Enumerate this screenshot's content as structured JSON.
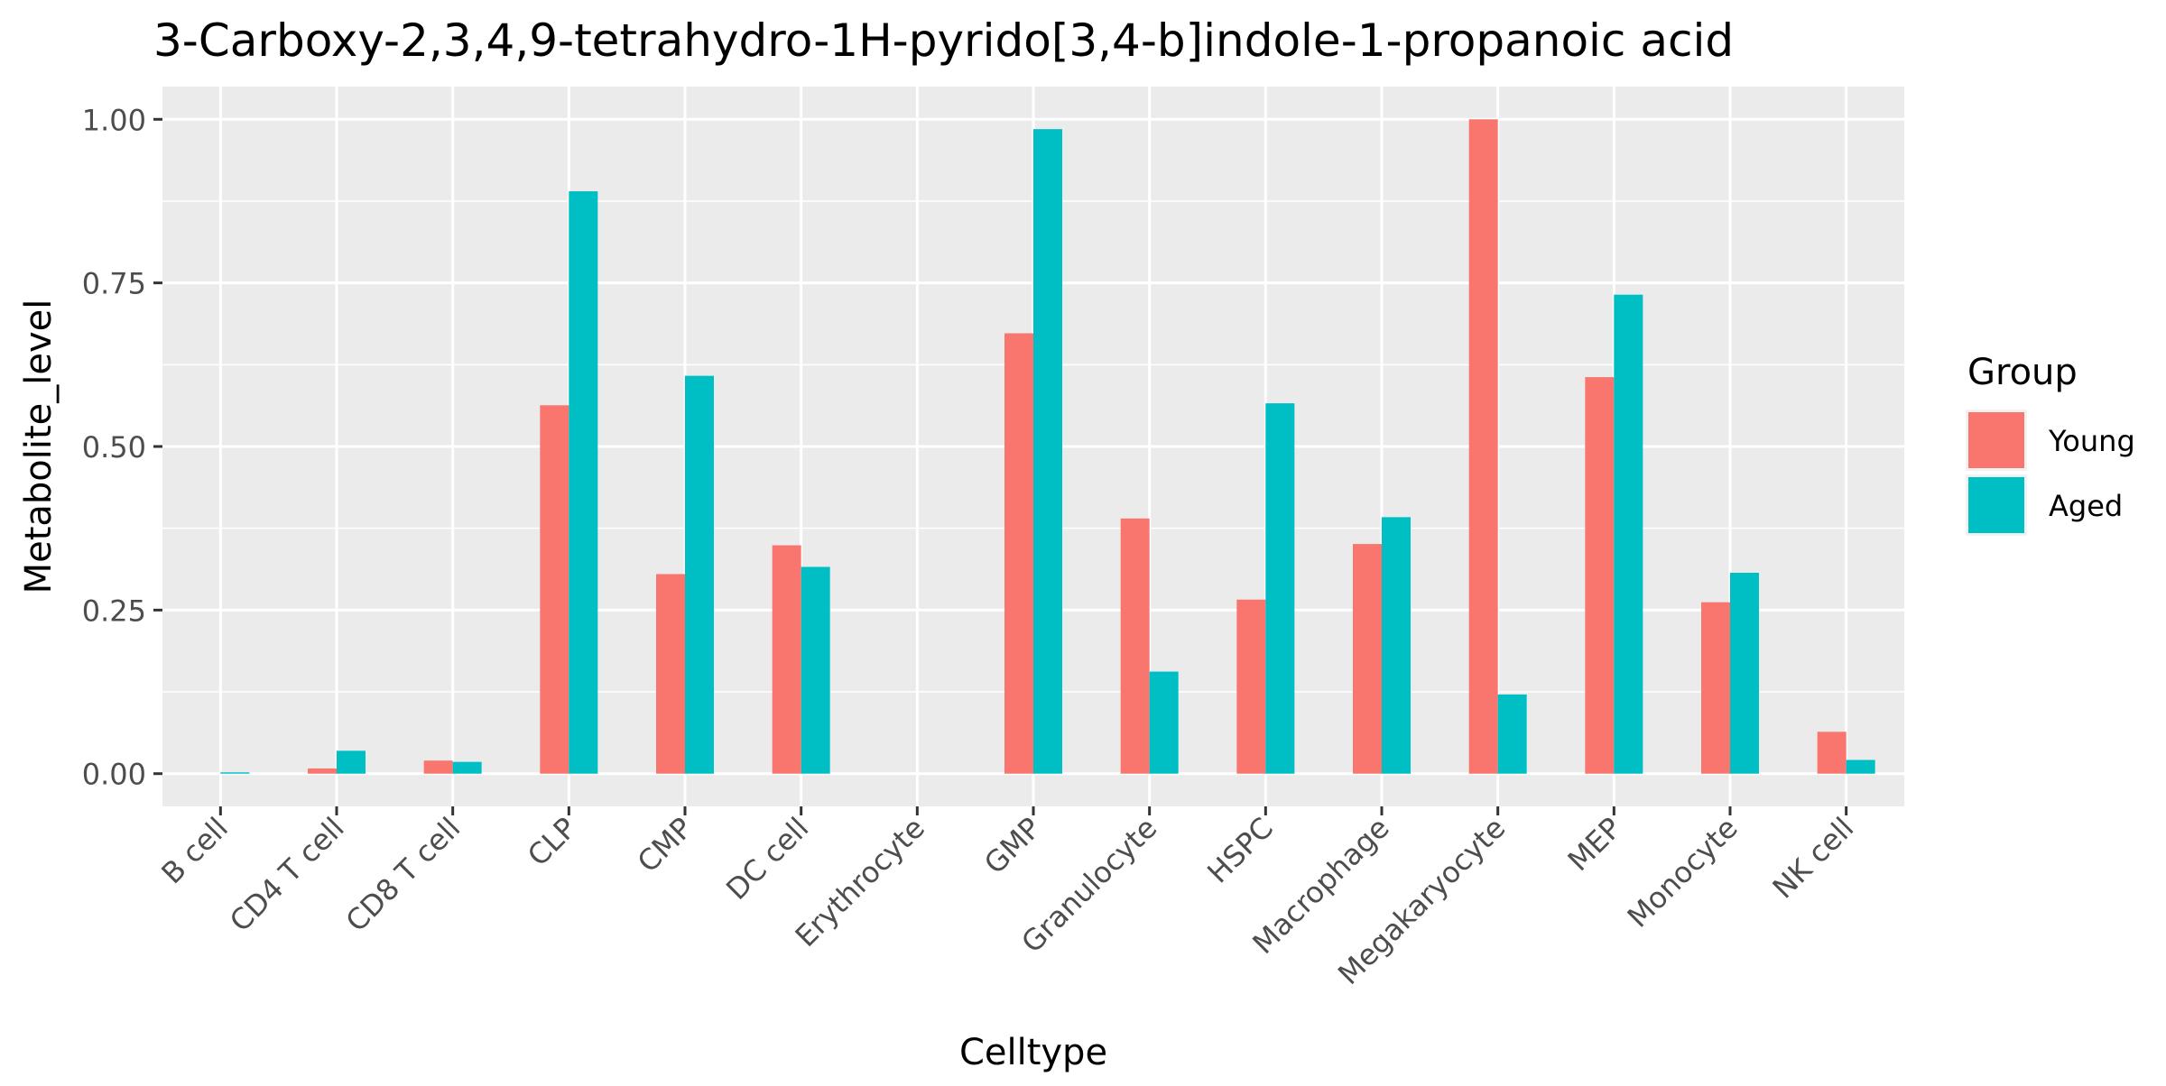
{
  "chart_data": {
    "type": "bar",
    "title": "3-Carboxy-2,3,4,9-tetrahydro-1H-pyrido[3,4-b]indole-1-propanoic acid",
    "xlabel": "Celltype",
    "ylabel": "Metabolite_level",
    "ylim": [
      -0.05,
      1.05
    ],
    "yticks": [
      0.0,
      0.25,
      0.5,
      0.75,
      1.0
    ],
    "ytick_labels": [
      "0.00",
      "0.25",
      "0.50",
      "0.75",
      "1.00"
    ],
    "grid": true,
    "legend_position": "right",
    "legend_title": "Group",
    "categories": [
      "B cell",
      "CD4 T cell",
      "CD8 T cell",
      "CLP",
      "CMP",
      "DC cell",
      "Erythrocyte",
      "GMP",
      "Granulocyte",
      "HSPC",
      "Macrophage",
      "Megakaryocyte",
      "MEP",
      "Monocyte",
      "NK cell"
    ],
    "series": [
      {
        "name": "Young",
        "color": "#F8766D",
        "values": [
          0.0,
          0.008,
          0.02,
          0.563,
          0.305,
          0.349,
          0.0,
          0.673,
          0.39,
          0.266,
          0.351,
          1.0,
          0.606,
          0.262,
          0.064
        ]
      },
      {
        "name": "Aged",
        "color": "#00BFC4",
        "values": [
          0.002,
          0.035,
          0.018,
          0.89,
          0.608,
          0.316,
          0.0,
          0.985,
          0.156,
          0.566,
          0.392,
          0.121,
          0.732,
          0.307,
          0.021
        ]
      }
    ]
  }
}
